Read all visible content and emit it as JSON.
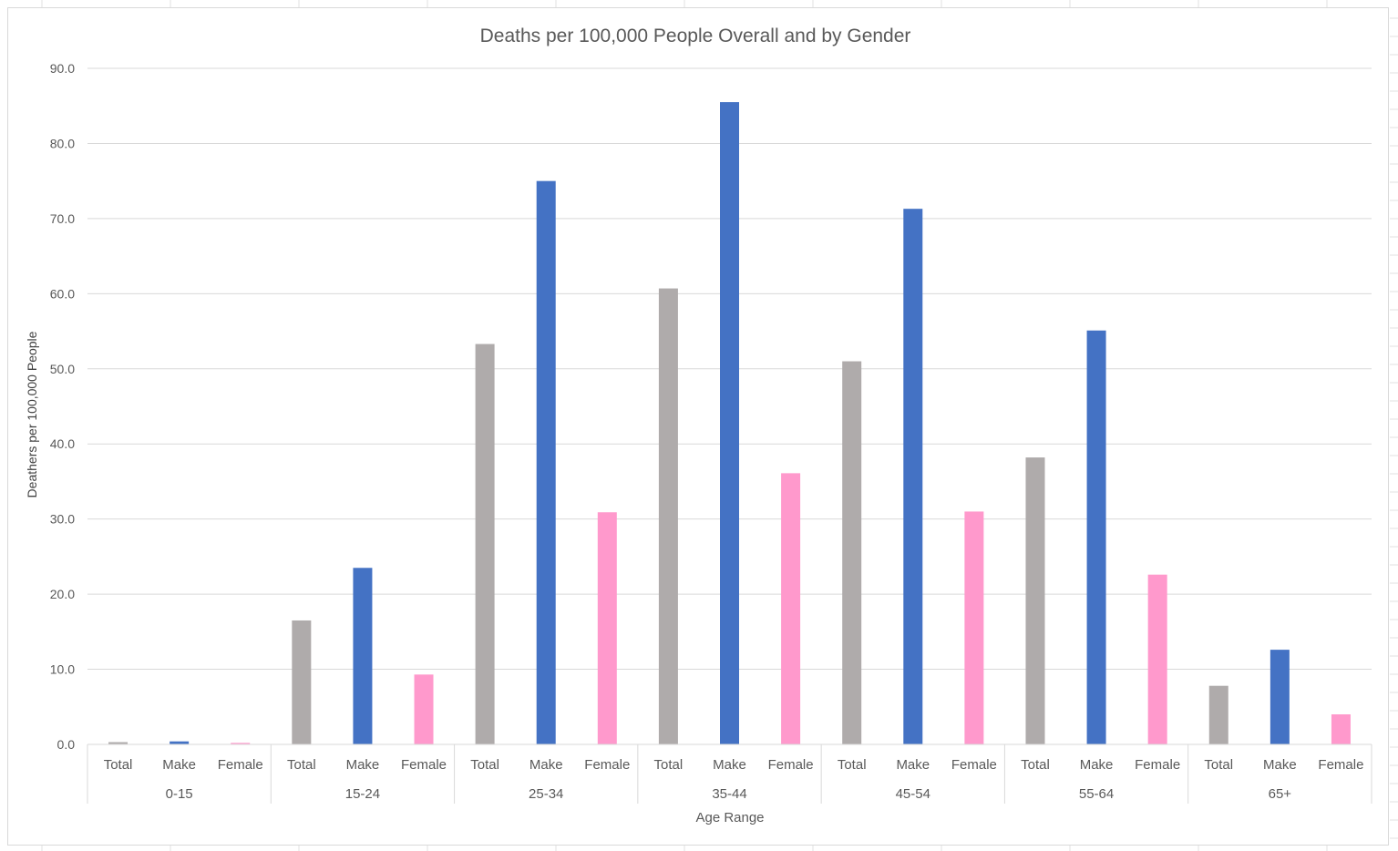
{
  "colors": {
    "total": "#afabab",
    "male": "#4472c4",
    "female": "#ff99cc",
    "gridline": "#d9d9d9",
    "text": "#595959"
  },
  "chart_data": {
    "type": "bar",
    "title": "Deaths per 100,000 People Overall and by Gender",
    "xlabel": "Age Range",
    "ylabel": "Deathers per 100,000 People",
    "ylim": [
      0,
      90
    ],
    "ytick_step": 10,
    "ytick_labels": [
      "0.0",
      "10.0",
      "20.0",
      "30.0",
      "40.0",
      "50.0",
      "60.0",
      "70.0",
      "80.0",
      "90.0"
    ],
    "grid": true,
    "legend": "none",
    "groups": [
      "0-15",
      "15-24",
      "25-34",
      "35-44",
      "45-54",
      "55-64",
      "65+"
    ],
    "subcategories": [
      "Total",
      "Make",
      "Female"
    ],
    "values": [
      [
        0.3,
        0.4,
        0.2
      ],
      [
        16.5,
        23.5,
        9.3
      ],
      [
        53.3,
        75.0,
        30.9
      ],
      [
        60.7,
        85.5,
        36.1
      ],
      [
        51.0,
        71.3,
        31.0
      ],
      [
        38.2,
        55.1,
        22.6
      ],
      [
        7.8,
        12.6,
        4.0
      ]
    ]
  }
}
